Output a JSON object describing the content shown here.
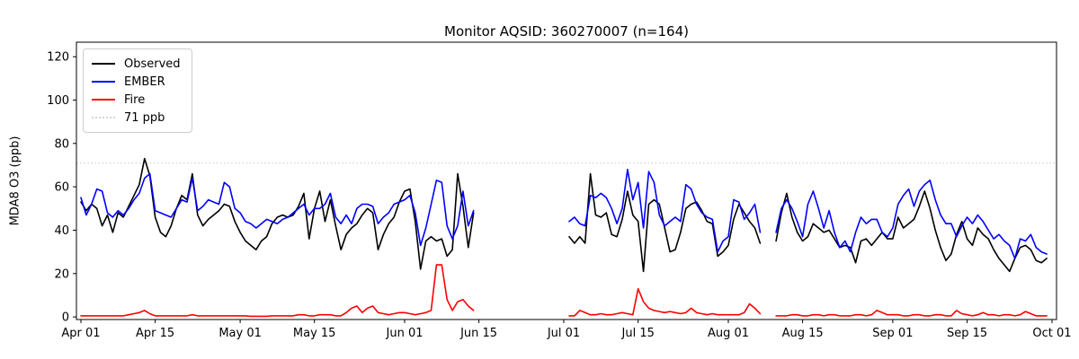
{
  "title": "Monitor AQSID: 360270007 (n=164)",
  "legend": {
    "entries": [
      {
        "label": "Observed",
        "color": "#000000",
        "dash": "solid"
      },
      {
        "label": "EMBER",
        "color": "#0000ff",
        "dash": "solid"
      },
      {
        "label": "Fire",
        "color": "#ff0000",
        "dash": "solid"
      },
      {
        "label": "71 ppb",
        "color": "#d3d3d3",
        "dash": "dotted"
      }
    ]
  },
  "chart_data": {
    "type": "line",
    "title": "Monitor AQSID: 360270007 (n=164)",
    "xlabel": "",
    "ylabel": "MDA8 O3 (ppb)",
    "n_points": 164,
    "grid": false,
    "legend_position": "upper left",
    "ylim": [
      -1.2,
      126.7
    ],
    "xlim_days": [
      -0.85,
      183.85
    ],
    "y_ticks": [
      0,
      20,
      40,
      60,
      80,
      100,
      120
    ],
    "x_ticks": [
      {
        "day": 0,
        "label": "Apr 01"
      },
      {
        "day": 14,
        "label": "Apr 15"
      },
      {
        "day": 30,
        "label": "May 01"
      },
      {
        "day": 44,
        "label": "May 15"
      },
      {
        "day": 61,
        "label": "Jun 01"
      },
      {
        "day": 75,
        "label": "Jun 15"
      },
      {
        "day": 91,
        "label": "Jul 01"
      },
      {
        "day": 105,
        "label": "Jul 15"
      },
      {
        "day": 122,
        "label": "Aug 01"
      },
      {
        "day": 136,
        "label": "Aug 15"
      },
      {
        "day": 153,
        "label": "Sep 01"
      },
      {
        "day": 167,
        "label": "Sep 15"
      },
      {
        "day": 183,
        "label": "Oct 01"
      }
    ],
    "threshold": {
      "value": 71,
      "label": "71 ppb",
      "color": "#d3d3d3",
      "style": "dotted"
    },
    "series": [
      {
        "name": "Observed",
        "color": "#000000",
        "segments": [
          {
            "start_date": "Apr 01",
            "start_day": 0,
            "values": [
              53,
              49,
              52,
              50,
              42,
              47,
              39,
              48,
              46,
              51,
              56,
              61,
              73,
              65,
              46,
              39,
              37,
              42,
              50,
              56,
              54,
              66,
              47,
              42,
              45,
              47,
              49,
              52,
              51,
              44,
              39,
              35,
              33,
              31,
              35,
              37,
              43,
              46,
              47,
              46,
              47,
              51,
              57,
              36,
              50,
              58,
              44,
              54,
              42,
              31,
              38,
              41,
              43,
              47,
              50,
              48,
              31,
              38,
              43,
              46,
              53,
              58,
              59,
              44,
              22,
              35,
              37,
              35,
              36,
              28,
              31,
              66,
              51,
              32,
              48
            ]
          },
          {
            "start_date": "Jul 02",
            "start_day": 92,
            "values": [
              37,
              34,
              37,
              34,
              66,
              47,
              46,
              48,
              38,
              37,
              45,
              58,
              47,
              44,
              21,
              52,
              54,
              52,
              41,
              30,
              31,
              39,
              50,
              52,
              53,
              49,
              44,
              43,
              28,
              30,
              33,
              45,
              52,
              48,
              44,
              41,
              34
            ]
          },
          {
            "start_date": "Aug 10",
            "start_day": 131,
            "values": [
              35,
              48,
              57,
              46,
              39,
              35,
              37,
              43,
              41,
              39,
              40,
              36,
              32,
              33,
              32,
              25,
              35,
              36,
              33,
              36,
              39,
              36,
              36,
              46,
              41,
              43,
              45,
              51,
              58,
              50,
              40,
              32,
              26,
              29,
              38,
              44,
              36,
              33,
              41,
              38,
              36,
              31,
              27,
              24,
              21,
              27,
              32,
              33,
              31,
              26,
              25,
              27
            ]
          }
        ]
      },
      {
        "name": "EMBER",
        "color": "#0000ff",
        "segments": [
          {
            "start_date": "Apr 01",
            "start_day": 0,
            "values": [
              55,
              47,
              52,
              59,
              58,
              48,
              46,
              49,
              47,
              50,
              54,
              57,
              64,
              66,
              49,
              48,
              47,
              46,
              50,
              54,
              53,
              64,
              49,
              51,
              54,
              53,
              52,
              62,
              60,
              50,
              48,
              44,
              43,
              41,
              43,
              45,
              44,
              43,
              45,
              46,
              48,
              50,
              52,
              47,
              50,
              50,
              52,
              57,
              46,
              43,
              47,
              43,
              50,
              52,
              52,
              51,
              43,
              46,
              48,
              52,
              53,
              54,
              56,
              48,
              33,
              41,
              52,
              63,
              62,
              42,
              36,
              42,
              58,
              42,
              49
            ]
          },
          {
            "start_date": "Jul 02",
            "start_day": 92,
            "values": [
              44,
              46,
              43,
              42,
              56,
              55,
              57,
              55,
              50,
              43,
              50,
              68,
              54,
              62,
              41,
              67,
              62,
              47,
              42,
              44,
              46,
              44,
              61,
              59,
              52,
              48,
              46,
              45,
              30,
              35,
              37,
              54,
              53,
              45,
              48,
              52,
              39
            ]
          },
          {
            "start_date": "Aug 10",
            "start_day": 131,
            "values": [
              39,
              50,
              54,
              50,
              44,
              37,
              52,
              58,
              50,
              41,
              49,
              39,
              32,
              35,
              30,
              39,
              46,
              43,
              45,
              45,
              39,
              37,
              41,
              52,
              56,
              59,
              51,
              58,
              61,
              63,
              54,
              47,
              43,
              43,
              37,
              42,
              46,
              43,
              47,
              44,
              40,
              36,
              38,
              35,
              33,
              27,
              36,
              35,
              38,
              32,
              30,
              29
            ]
          }
        ]
      },
      {
        "name": "Fire",
        "color": "#ff0000",
        "segments": [
          {
            "start_date": "Apr 01",
            "start_day": 0,
            "values": [
              0.5,
              0.5,
              0.5,
              0.5,
              0.5,
              0.5,
              0.5,
              0.5,
              0.5,
              1,
              1.5,
              2,
              3,
              1.5,
              0.5,
              0.5,
              0.5,
              0.5,
              0.5,
              0.5,
              0.5,
              1,
              0.5,
              0.5,
              0.5,
              0.5,
              0.5,
              0.5,
              0.5,
              0.5,
              0.5,
              0.5,
              0.3,
              0.3,
              0.3,
              0.3,
              0.5,
              0.5,
              0.5,
              0.5,
              0.5,
              1,
              1,
              0.5,
              0.5,
              1,
              1,
              1,
              0.5,
              0.5,
              2,
              4,
              5,
              2,
              4,
              5,
              2,
              1.5,
              1,
              1.5,
              2,
              2,
              1.5,
              1,
              1.5,
              2,
              3,
              24,
              24,
              8,
              3,
              7,
              8,
              5,
              3
            ]
          },
          {
            "start_date": "Jul 02",
            "start_day": 92,
            "values": [
              0.5,
              0.5,
              3,
              2,
              1,
              1,
              1.5,
              1,
              1,
              1.5,
              2,
              1.5,
              1,
              13,
              7,
              4,
              3,
              2.5,
              2,
              2.5,
              2,
              1.5,
              2,
              4,
              2,
              1.5,
              1,
              1.5,
              1,
              1,
              1,
              1,
              1,
              2,
              6,
              4,
              1.5
            ]
          },
          {
            "start_date": "Aug 10",
            "start_day": 131,
            "values": [
              0.5,
              0.5,
              0.5,
              1,
              1,
              0.5,
              0.5,
              1,
              1,
              0.5,
              1,
              1,
              0.5,
              0.5,
              0.5,
              1,
              1,
              0.5,
              1,
              3,
              2,
              1,
              1,
              1,
              0.5,
              0.5,
              1,
              1,
              0.5,
              0.5,
              1,
              1,
              0.5,
              0.5,
              3,
              1.5,
              1,
              0.5,
              1,
              2,
              1,
              1,
              0.5,
              1,
              1,
              0.5,
              1,
              2.5,
              1.5,
              0.5,
              0.5,
              0.5
            ]
          }
        ]
      }
    ]
  }
}
